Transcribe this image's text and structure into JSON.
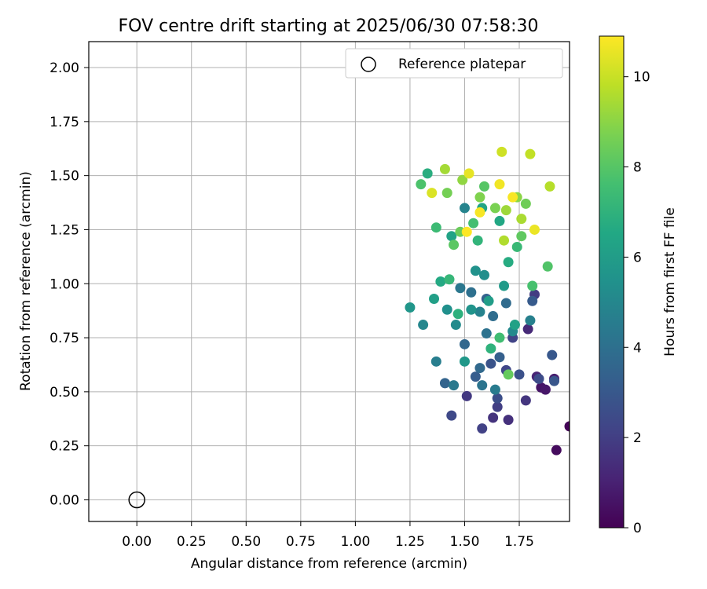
{
  "chart_data": {
    "type": "scatter",
    "title": "FOV centre drift starting at 2025/06/30 07:58:30",
    "xlabel": "Angular distance from reference (arcmin)",
    "ylabel": "Rotation from reference (arcmin)",
    "xlim": [
      -0.22,
      1.98
    ],
    "ylim": [
      -0.1,
      2.12
    ],
    "xticks": [
      "0.00",
      "0.25",
      "0.50",
      "0.75",
      "1.00",
      "1.25",
      "1.50",
      "1.75"
    ],
    "yticks": [
      "0.00",
      "0.25",
      "0.50",
      "0.75",
      "1.00",
      "1.25",
      "1.50",
      "1.75",
      "2.00"
    ],
    "grid": true,
    "legend": {
      "placement": "top-right",
      "label": "Reference platepar"
    },
    "reference_point": {
      "x": 0.0,
      "y": 0.0
    },
    "colorbar": {
      "label": "Hours from first FF file",
      "colormap": "viridis",
      "range": [
        0,
        10.9
      ],
      "ticks": [
        "0",
        "2",
        "4",
        "6",
        "8",
        "10"
      ]
    },
    "series": [
      {
        "points": [
          [
            1.98,
            0.34,
            0.1
          ],
          [
            1.92,
            0.23,
            0.3
          ],
          [
            1.85,
            0.52,
            0.6
          ],
          [
            1.87,
            0.51,
            0.7
          ],
          [
            1.91,
            0.56,
            0.9
          ],
          [
            1.83,
            0.57,
            1.1
          ],
          [
            1.79,
            0.79,
            1.3
          ],
          [
            1.7,
            0.37,
            1.5
          ],
          [
            1.63,
            0.38,
            1.6
          ],
          [
            1.78,
            0.46,
            1.7
          ],
          [
            1.51,
            0.48,
            1.8
          ],
          [
            1.82,
            0.95,
            1.9
          ],
          [
            1.65,
            0.43,
            2.0
          ],
          [
            1.58,
            0.33,
            2.1
          ],
          [
            1.72,
            0.75,
            2.2
          ],
          [
            1.69,
            0.6,
            2.3
          ],
          [
            1.44,
            0.39,
            2.4
          ],
          [
            1.84,
            0.56,
            2.5
          ],
          [
            1.65,
            0.47,
            2.6
          ],
          [
            1.75,
            0.58,
            2.7
          ],
          [
            1.62,
            0.63,
            2.8
          ],
          [
            1.91,
            0.55,
            2.9
          ],
          [
            1.9,
            0.67,
            3.0
          ],
          [
            1.81,
            0.92,
            3.1
          ],
          [
            1.55,
            0.57,
            3.2
          ],
          [
            1.66,
            0.66,
            3.3
          ],
          [
            1.6,
            0.93,
            3.4
          ],
          [
            1.41,
            0.54,
            3.5
          ],
          [
            1.5,
            0.72,
            3.6
          ],
          [
            1.57,
            0.61,
            3.7
          ],
          [
            1.69,
            0.91,
            3.8
          ],
          [
            1.63,
            0.85,
            3.9
          ],
          [
            1.53,
            0.96,
            4.0
          ],
          [
            1.6,
            0.77,
            4.1
          ],
          [
            1.58,
            0.53,
            4.2
          ],
          [
            1.48,
            0.98,
            4.3
          ],
          [
            1.45,
            0.53,
            4.4
          ],
          [
            1.64,
            0.51,
            4.5
          ],
          [
            1.37,
            0.64,
            4.6
          ],
          [
            1.8,
            0.83,
            4.7
          ],
          [
            1.57,
            0.87,
            4.8
          ],
          [
            1.5,
            1.35,
            4.9
          ],
          [
            1.31,
            0.81,
            5.0
          ],
          [
            1.72,
            0.78,
            5.1
          ],
          [
            1.46,
            0.81,
            5.2
          ],
          [
            1.59,
            1.04,
            5.3
          ],
          [
            1.42,
            0.88,
            5.4
          ],
          [
            1.55,
            1.06,
            5.5
          ],
          [
            1.53,
            0.88,
            5.6
          ],
          [
            1.25,
            0.89,
            5.7
          ],
          [
            1.5,
            0.64,
            5.8
          ],
          [
            1.68,
            0.99,
            5.9
          ],
          [
            1.61,
            0.92,
            6.0
          ],
          [
            1.36,
            0.93,
            6.1
          ],
          [
            1.73,
            0.81,
            6.2
          ],
          [
            1.44,
            1.22,
            6.3
          ],
          [
            1.58,
            1.35,
            6.4
          ],
          [
            1.66,
            1.29,
            6.5
          ],
          [
            1.39,
            1.01,
            6.6
          ],
          [
            1.7,
            1.1,
            6.7
          ],
          [
            1.33,
            1.51,
            6.8
          ],
          [
            1.47,
            0.86,
            6.9
          ],
          [
            1.62,
            0.7,
            7.0
          ],
          [
            1.56,
            1.2,
            7.1
          ],
          [
            1.43,
            1.02,
            7.2
          ],
          [
            1.74,
            1.17,
            7.3
          ],
          [
            1.37,
            1.26,
            7.4
          ],
          [
            1.66,
            0.75,
            7.5
          ],
          [
            1.54,
            1.28,
            7.6
          ],
          [
            1.81,
            0.99,
            7.7
          ],
          [
            1.3,
            1.46,
            7.8
          ],
          [
            1.88,
            1.08,
            7.9
          ],
          [
            1.59,
            1.45,
            8.0
          ],
          [
            1.45,
            1.18,
            8.1
          ],
          [
            1.76,
            1.22,
            8.2
          ],
          [
            1.7,
            0.58,
            8.3
          ],
          [
            1.48,
            1.24,
            8.4
          ],
          [
            1.78,
            1.37,
            8.5
          ],
          [
            1.42,
            1.42,
            8.6
          ],
          [
            1.64,
            1.35,
            8.7
          ],
          [
            1.57,
            1.4,
            8.8
          ],
          [
            1.74,
            1.4,
            9.0
          ],
          [
            1.49,
            1.48,
            9.1
          ],
          [
            1.69,
            1.34,
            9.3
          ],
          [
            1.41,
            1.53,
            9.4
          ],
          [
            1.76,
            1.3,
            9.5
          ],
          [
            1.68,
            1.2,
            9.6
          ],
          [
            1.89,
            1.45,
            9.7
          ],
          [
            1.8,
            1.6,
            9.9
          ],
          [
            1.67,
            1.61,
            10.1
          ],
          [
            1.35,
            1.42,
            10.3
          ],
          [
            1.52,
            1.51,
            10.5
          ],
          [
            1.82,
            1.25,
            10.6
          ],
          [
            1.66,
            1.46,
            10.7
          ],
          [
            1.57,
            1.33,
            10.8
          ],
          [
            1.72,
            1.4,
            10.8
          ],
          [
            1.51,
            1.24,
            10.9
          ]
        ]
      }
    ]
  }
}
